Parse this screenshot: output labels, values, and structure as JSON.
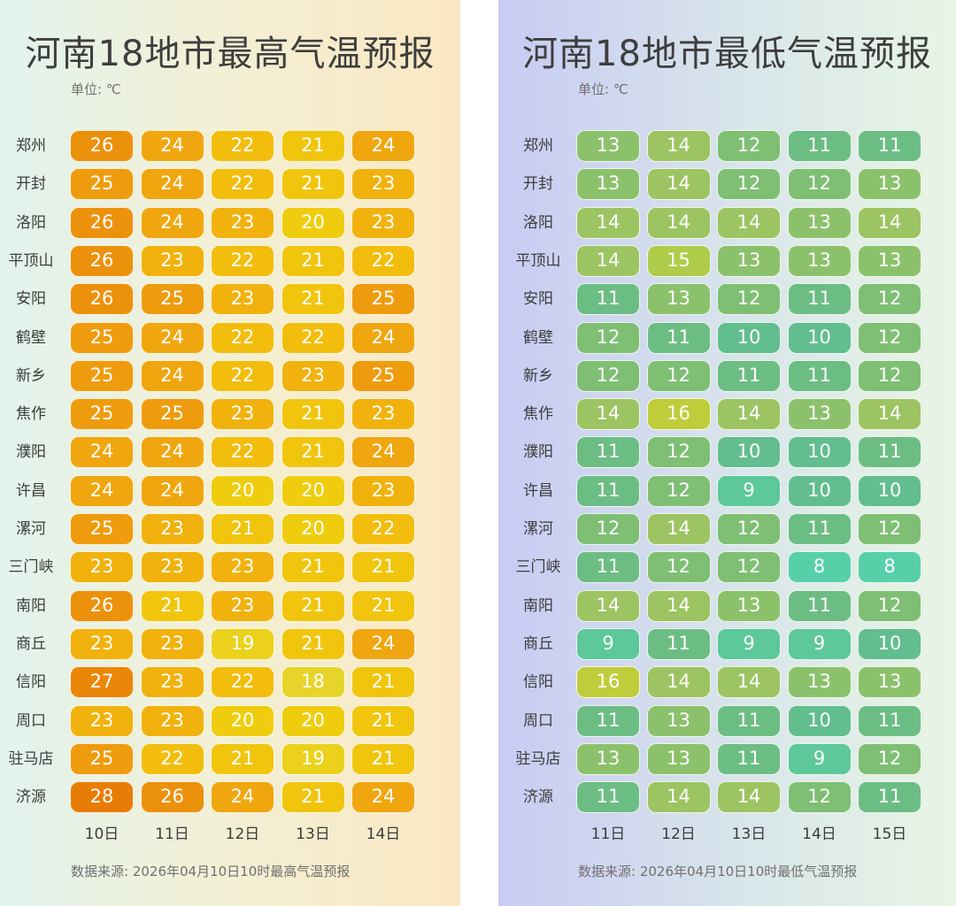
{
  "chart_data": [
    {
      "type": "heatmap",
      "title": "河南18地市最高气温预报",
      "unit_label": "单位: ℃",
      "source": "数据来源: 2026年04月10日10时最高气温预报",
      "days": [
        "10日",
        "11日",
        "12日",
        "13日",
        "14日"
      ],
      "cities": [
        "郑州",
        "开封",
        "洛阳",
        "平顶山",
        "安阳",
        "鹤壁",
        "新乡",
        "焦作",
        "濮阳",
        "许昌",
        "漯河",
        "三门峡",
        "南阳",
        "商丘",
        "信阳",
        "周口",
        "驻马店",
        "济源"
      ],
      "values": [
        [
          26,
          24,
          22,
          21,
          24
        ],
        [
          25,
          24,
          22,
          21,
          23
        ],
        [
          26,
          24,
          23,
          20,
          23
        ],
        [
          26,
          23,
          22,
          21,
          22
        ],
        [
          26,
          25,
          23,
          21,
          25
        ],
        [
          25,
          24,
          22,
          22,
          24
        ],
        [
          25,
          24,
          22,
          23,
          25
        ],
        [
          25,
          25,
          23,
          21,
          23
        ],
        [
          24,
          24,
          22,
          21,
          24
        ],
        [
          24,
          24,
          20,
          20,
          23
        ],
        [
          25,
          23,
          21,
          20,
          22
        ],
        [
          23,
          23,
          23,
          21,
          21
        ],
        [
          26,
          21,
          23,
          21,
          21
        ],
        [
          23,
          23,
          19,
          21,
          24
        ],
        [
          27,
          23,
          22,
          18,
          21
        ],
        [
          23,
          23,
          20,
          20,
          21
        ],
        [
          25,
          22,
          21,
          19,
          21
        ],
        [
          28,
          26,
          24,
          21,
          24
        ]
      ],
      "colors": {
        "stops": [
          [
            18,
            "#e6d42a"
          ],
          [
            20,
            "#efcd0e"
          ],
          [
            22,
            "#f2bd0c"
          ],
          [
            24,
            "#f0a60e"
          ],
          [
            26,
            "#ec910c"
          ],
          [
            28,
            "#e77d06"
          ]
        ]
      }
    },
    {
      "type": "heatmap",
      "title": "河南18地市最低气温预报",
      "unit_label": "单位: ℃",
      "source": "数据来源: 2026年04月10日10时最低气温预报",
      "days": [
        "11日",
        "12日",
        "13日",
        "14日",
        "15日"
      ],
      "cities": [
        "郑州",
        "开封",
        "洛阳",
        "平顶山",
        "安阳",
        "鹤壁",
        "新乡",
        "焦作",
        "濮阳",
        "许昌",
        "漯河",
        "三门峡",
        "南阳",
        "商丘",
        "信阳",
        "周口",
        "驻马店",
        "济源"
      ],
      "values": [
        [
          13,
          14,
          12,
          11,
          11
        ],
        [
          13,
          14,
          12,
          12,
          13
        ],
        [
          14,
          14,
          14,
          13,
          14
        ],
        [
          14,
          15,
          13,
          13,
          13
        ],
        [
          11,
          13,
          12,
          11,
          12
        ],
        [
          12,
          11,
          10,
          10,
          12
        ],
        [
          12,
          12,
          11,
          11,
          12
        ],
        [
          14,
          16,
          14,
          13,
          14
        ],
        [
          11,
          12,
          10,
          10,
          11
        ],
        [
          11,
          12,
          9,
          10,
          10
        ],
        [
          12,
          14,
          12,
          11,
          12
        ],
        [
          11,
          12,
          12,
          8,
          8
        ],
        [
          14,
          14,
          13,
          11,
          12
        ],
        [
          9,
          11,
          9,
          9,
          10
        ],
        [
          16,
          14,
          14,
          13,
          13
        ],
        [
          11,
          13,
          11,
          10,
          11
        ],
        [
          13,
          13,
          11,
          9,
          12
        ],
        [
          11,
          14,
          14,
          12,
          11
        ]
      ],
      "colors": {
        "stops": [
          [
            8,
            "#57d0aa"
          ],
          [
            9,
            "#5dc89a"
          ],
          [
            10,
            "#62be8e"
          ],
          [
            11,
            "#6cbd84"
          ],
          [
            12,
            "#7ebf74"
          ],
          [
            13,
            "#8cc16c"
          ],
          [
            14,
            "#9cc462"
          ],
          [
            15,
            "#aecb4a"
          ],
          [
            16,
            "#bfcd3a"
          ]
        ]
      }
    }
  ]
}
